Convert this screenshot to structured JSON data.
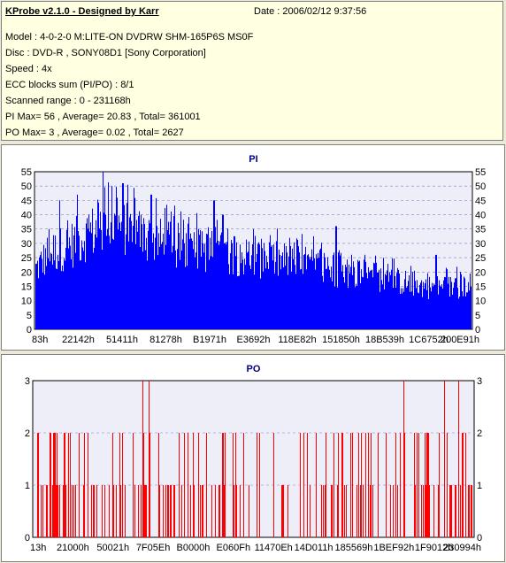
{
  "header": {
    "title": "KProbe v2.1.0 - Designed by Karr",
    "date": "Date : 2006/02/12 9:37:56"
  },
  "info_lines": [
    "Model : 4-0-2-0 M:LITE-ON DVDRW SHM-165P6S MS0F",
    "Disc : DVD-R , SONY08D1 [Sony Corporation]",
    "Speed : 4x",
    "ECC blocks sum (PI/PO) : 8/1",
    "Scanned range : 0 - 231168h",
    "PI Max= 56 , Average= 20.83 , Total= 361001",
    "PO Max= 3 , Average= 0.02 , Total= 2627"
  ],
  "colors": {
    "pi": "#0000ff",
    "po": "#ff0000",
    "plot_bg": "#eeeef8",
    "grid": "#8080c0"
  },
  "chart_data": [
    {
      "type": "bar",
      "title": "PI",
      "ylim": [
        0,
        55
      ],
      "y_ticks": [
        0,
        5,
        10,
        15,
        20,
        25,
        30,
        35,
        40,
        45,
        50,
        55
      ],
      "x_tick_labels": [
        "83h",
        "22142h",
        "51411h",
        "81278h",
        "B1971h",
        "E3692h",
        "118E82h",
        "151850h",
        "18B539h",
        "1C6752h",
        "200E91h"
      ],
      "envelope_x": [
        0,
        0.03,
        0.08,
        0.12,
        0.16,
        0.2,
        0.25,
        0.3,
        0.35,
        0.4,
        0.45,
        0.5,
        0.55,
        0.6,
        0.65,
        0.7,
        0.75,
        0.8,
        0.85,
        0.9,
        0.95,
        1.0
      ],
      "envelope_y": [
        27,
        34,
        38,
        43,
        46,
        46,
        42,
        38,
        37,
        35,
        34,
        32,
        31,
        30,
        28,
        26,
        25,
        23,
        21,
        19,
        19,
        20
      ],
      "peaks": [
        [
          0.03,
          35
        ],
        [
          0.055,
          45
        ],
        [
          0.095,
          47
        ],
        [
          0.155,
          56
        ],
        [
          0.175,
          50
        ],
        [
          0.2,
          51
        ],
        [
          0.265,
          47
        ],
        [
          0.41,
          45
        ],
        [
          0.43,
          40
        ],
        [
          0.69,
          36
        ],
        [
          0.92,
          26
        ]
      ]
    },
    {
      "type": "bar",
      "title": "PO",
      "ylim": [
        0,
        3
      ],
      "y_ticks": [
        0,
        1,
        2,
        3
      ],
      "x_tick_labels": [
        "13h",
        "21000h",
        "50021h",
        "7F05Eh",
        "B0000h",
        "E060Fh",
        "11470Eh",
        "14D011h",
        "185569h",
        "1BEF92h",
        "1F9012h",
        "230994h"
      ],
      "value3_x": [
        0.248,
        0.262,
        0.842,
        0.935,
        0.968
      ],
      "density": [
        [
          0.0,
          0.65
        ],
        [
          0.3,
          0.55
        ],
        [
          0.55,
          0.45
        ],
        [
          0.8,
          0.5
        ],
        [
          1.0,
          0.7
        ]
      ]
    }
  ]
}
